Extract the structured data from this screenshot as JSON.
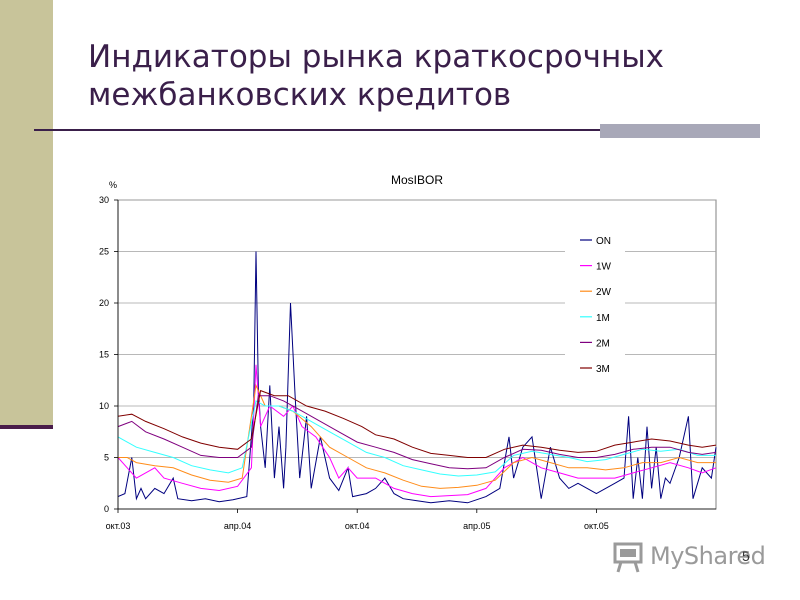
{
  "slide": {
    "title_line1": "Индикаторы рынка краткосрочных",
    "title_line2": "межбанковских кредитов",
    "page_number": "5"
  },
  "footer": {
    "logo_text": "MyShared"
  },
  "colors": {
    "ON": "#00007f",
    "1W": "#ff00ff",
    "2W": "#ff8c1a",
    "1M": "#33ffff",
    "2M": "#7f007f",
    "3M": "#800000"
  },
  "chart_data": {
    "type": "line",
    "title": "MosIBOR",
    "ylabel": "%",
    "xlabel": "",
    "ylim": [
      0,
      30
    ],
    "yticks": [
      0,
      5,
      10,
      15,
      20,
      25,
      30
    ],
    "xlim": [
      0,
      1300
    ],
    "xticks": [
      {
        "label": "окт.03",
        "x": 0
      },
      {
        "label": "апр.04",
        "x": 260
      },
      {
        "label": "окт.04",
        "x": 520
      },
      {
        "label": "апр.05",
        "x": 780
      },
      {
        "label": "окт.05",
        "x": 1040
      }
    ],
    "grid": true,
    "legend_position": "top-right",
    "series": [
      {
        "name": "ON",
        "color": "#00007f",
        "points": [
          [
            0,
            1.2
          ],
          [
            15,
            1.5
          ],
          [
            30,
            5
          ],
          [
            40,
            1.0
          ],
          [
            50,
            2
          ],
          [
            60,
            1
          ],
          [
            80,
            2
          ],
          [
            100,
            1.5
          ],
          [
            120,
            3
          ],
          [
            130,
            1
          ],
          [
            160,
            0.8
          ],
          [
            190,
            1
          ],
          [
            220,
            0.7
          ],
          [
            250,
            0.9
          ],
          [
            280,
            1.2
          ],
          [
            295,
            10
          ],
          [
            300,
            25
          ],
          [
            305,
            12
          ],
          [
            310,
            8
          ],
          [
            320,
            4
          ],
          [
            330,
            12
          ],
          [
            340,
            3
          ],
          [
            350,
            8
          ],
          [
            360,
            2
          ],
          [
            365,
            6
          ],
          [
            375,
            20
          ],
          [
            385,
            11
          ],
          [
            395,
            3
          ],
          [
            410,
            9
          ],
          [
            420,
            2
          ],
          [
            440,
            7
          ],
          [
            460,
            3
          ],
          [
            480,
            1.8
          ],
          [
            500,
            4
          ],
          [
            510,
            1.2
          ],
          [
            540,
            1.5
          ],
          [
            560,
            2
          ],
          [
            580,
            3
          ],
          [
            600,
            1.5
          ],
          [
            620,
            1
          ],
          [
            650,
            0.8
          ],
          [
            680,
            0.6
          ],
          [
            700,
            0.7
          ],
          [
            720,
            0.8
          ],
          [
            760,
            0.6
          ],
          [
            780,
            0.9
          ],
          [
            800,
            1.2
          ],
          [
            830,
            2
          ],
          [
            850,
            7
          ],
          [
            860,
            3
          ],
          [
            880,
            6
          ],
          [
            900,
            7
          ],
          [
            920,
            1
          ],
          [
            940,
            6
          ],
          [
            960,
            3
          ],
          [
            980,
            2
          ],
          [
            1000,
            2.5
          ],
          [
            1020,
            2
          ],
          [
            1040,
            1.5
          ],
          [
            1060,
            2
          ],
          [
            1080,
            2.5
          ],
          [
            1100,
            3
          ],
          [
            1110,
            9
          ],
          [
            1120,
            1
          ],
          [
            1130,
            5
          ],
          [
            1140,
            1
          ],
          [
            1150,
            8
          ],
          [
            1160,
            2
          ],
          [
            1170,
            6
          ],
          [
            1180,
            1
          ],
          [
            1190,
            3
          ],
          [
            1200,
            2.5
          ],
          [
            1220,
            5
          ],
          [
            1240,
            9
          ],
          [
            1250,
            1
          ],
          [
            1270,
            4
          ],
          [
            1290,
            3
          ],
          [
            1300,
            6
          ]
        ]
      },
      {
        "name": "1W",
        "color": "#ff00ff",
        "points": [
          [
            0,
            5
          ],
          [
            20,
            4
          ],
          [
            40,
            3
          ],
          [
            60,
            3.5
          ],
          [
            80,
            4
          ],
          [
            100,
            3
          ],
          [
            140,
            2.5
          ],
          [
            180,
            2
          ],
          [
            220,
            1.8
          ],
          [
            260,
            2.2
          ],
          [
            290,
            4
          ],
          [
            300,
            14
          ],
          [
            310,
            8
          ],
          [
            330,
            10
          ],
          [
            360,
            9
          ],
          [
            380,
            10
          ],
          [
            400,
            8
          ],
          [
            430,
            7
          ],
          [
            460,
            5
          ],
          [
            480,
            3
          ],
          [
            500,
            4
          ],
          [
            520,
            3
          ],
          [
            560,
            3
          ],
          [
            600,
            2
          ],
          [
            640,
            1.5
          ],
          [
            680,
            1.2
          ],
          [
            720,
            1.3
          ],
          [
            760,
            1.4
          ],
          [
            800,
            2
          ],
          [
            840,
            4
          ],
          [
            880,
            5
          ],
          [
            920,
            4
          ],
          [
            960,
            3.5
          ],
          [
            1000,
            3
          ],
          [
            1040,
            3
          ],
          [
            1080,
            3
          ],
          [
            1120,
            3.5
          ],
          [
            1160,
            4
          ],
          [
            1200,
            4.5
          ],
          [
            1240,
            4
          ],
          [
            1270,
            3.5
          ],
          [
            1300,
            4
          ]
        ]
      },
      {
        "name": "2W",
        "color": "#ff8c1a",
        "points": [
          [
            0,
            5
          ],
          [
            20,
            5
          ],
          [
            40,
            4.5
          ],
          [
            80,
            4.2
          ],
          [
            120,
            4
          ],
          [
            160,
            3.3
          ],
          [
            200,
            2.8
          ],
          [
            240,
            2.6
          ],
          [
            270,
            3
          ],
          [
            300,
            12
          ],
          [
            320,
            10
          ],
          [
            350,
            10
          ],
          [
            380,
            9.5
          ],
          [
            420,
            8
          ],
          [
            460,
            6
          ],
          [
            500,
            5
          ],
          [
            540,
            4
          ],
          [
            580,
            3.5
          ],
          [
            620,
            2.8
          ],
          [
            660,
            2.2
          ],
          [
            700,
            2
          ],
          [
            740,
            2.1
          ],
          [
            780,
            2.3
          ],
          [
            820,
            2.8
          ],
          [
            860,
            4.5
          ],
          [
            900,
            5
          ],
          [
            940,
            4.5
          ],
          [
            980,
            4
          ],
          [
            1020,
            4
          ],
          [
            1060,
            3.8
          ],
          [
            1100,
            4
          ],
          [
            1140,
            4.5
          ],
          [
            1180,
            4.5
          ],
          [
            1220,
            5
          ],
          [
            1260,
            4.5
          ],
          [
            1300,
            4.5
          ]
        ]
      },
      {
        "name": "1M",
        "color": "#33ffff",
        "points": [
          [
            0,
            7
          ],
          [
            20,
            6.5
          ],
          [
            40,
            6
          ],
          [
            80,
            5.5
          ],
          [
            120,
            5
          ],
          [
            160,
            4.2
          ],
          [
            200,
            3.8
          ],
          [
            240,
            3.5
          ],
          [
            270,
            4
          ],
          [
            300,
            10.5
          ],
          [
            320,
            10
          ],
          [
            350,
            10
          ],
          [
            380,
            9.5
          ],
          [
            420,
            8.5
          ],
          [
            460,
            7.5
          ],
          [
            500,
            6.5
          ],
          [
            540,
            5.5
          ],
          [
            580,
            5
          ],
          [
            620,
            4.2
          ],
          [
            660,
            3.8
          ],
          [
            700,
            3.4
          ],
          [
            740,
            3.2
          ],
          [
            780,
            3.3
          ],
          [
            820,
            3.6
          ],
          [
            860,
            5.2
          ],
          [
            900,
            5.6
          ],
          [
            940,
            5.3
          ],
          [
            980,
            5
          ],
          [
            1020,
            4.6
          ],
          [
            1060,
            4.8
          ],
          [
            1100,
            5.3
          ],
          [
            1140,
            5.8
          ],
          [
            1180,
            5.6
          ],
          [
            1220,
            5.8
          ],
          [
            1260,
            5.2
          ],
          [
            1300,
            5.2
          ]
        ]
      },
      {
        "name": "2M",
        "color": "#7f007f",
        "points": [
          [
            0,
            8
          ],
          [
            30,
            8.5
          ],
          [
            60,
            7.5
          ],
          [
            100,
            6.8
          ],
          [
            140,
            6
          ],
          [
            180,
            5.2
          ],
          [
            220,
            5
          ],
          [
            260,
            5
          ],
          [
            290,
            6
          ],
          [
            305,
            11
          ],
          [
            330,
            11
          ],
          [
            360,
            10.5
          ],
          [
            400,
            9.5
          ],
          [
            440,
            8.5
          ],
          [
            480,
            7.5
          ],
          [
            520,
            6.5
          ],
          [
            560,
            6
          ],
          [
            600,
            5.5
          ],
          [
            640,
            4.8
          ],
          [
            680,
            4.4
          ],
          [
            720,
            4
          ],
          [
            760,
            3.9
          ],
          [
            800,
            4
          ],
          [
            840,
            5
          ],
          [
            880,
            5.8
          ],
          [
            920,
            5.7
          ],
          [
            960,
            5.3
          ],
          [
            1000,
            5
          ],
          [
            1040,
            5
          ],
          [
            1080,
            5.3
          ],
          [
            1120,
            5.8
          ],
          [
            1160,
            6
          ],
          [
            1200,
            6
          ],
          [
            1240,
            5.5
          ],
          [
            1270,
            5.3
          ],
          [
            1300,
            5.5
          ]
        ]
      },
      {
        "name": "3M",
        "color": "#800000",
        "points": [
          [
            0,
            9
          ],
          [
            30,
            9.2
          ],
          [
            60,
            8.5
          ],
          [
            100,
            7.8
          ],
          [
            140,
            7
          ],
          [
            180,
            6.4
          ],
          [
            220,
            6
          ],
          [
            260,
            5.8
          ],
          [
            290,
            6.8
          ],
          [
            310,
            11.5
          ],
          [
            340,
            11
          ],
          [
            370,
            11
          ],
          [
            410,
            10
          ],
          [
            450,
            9.5
          ],
          [
            490,
            8.8
          ],
          [
            530,
            8
          ],
          [
            560,
            7.2
          ],
          [
            600,
            6.8
          ],
          [
            640,
            6
          ],
          [
            680,
            5.4
          ],
          [
            720,
            5.2
          ],
          [
            760,
            5
          ],
          [
            800,
            5
          ],
          [
            840,
            5.8
          ],
          [
            880,
            6.2
          ],
          [
            920,
            6
          ],
          [
            960,
            5.7
          ],
          [
            1000,
            5.5
          ],
          [
            1040,
            5.6
          ],
          [
            1080,
            6.2
          ],
          [
            1120,
            6.5
          ],
          [
            1160,
            6.8
          ],
          [
            1200,
            6.6
          ],
          [
            1240,
            6.2
          ],
          [
            1270,
            6
          ],
          [
            1300,
            6.2
          ]
        ]
      }
    ]
  }
}
